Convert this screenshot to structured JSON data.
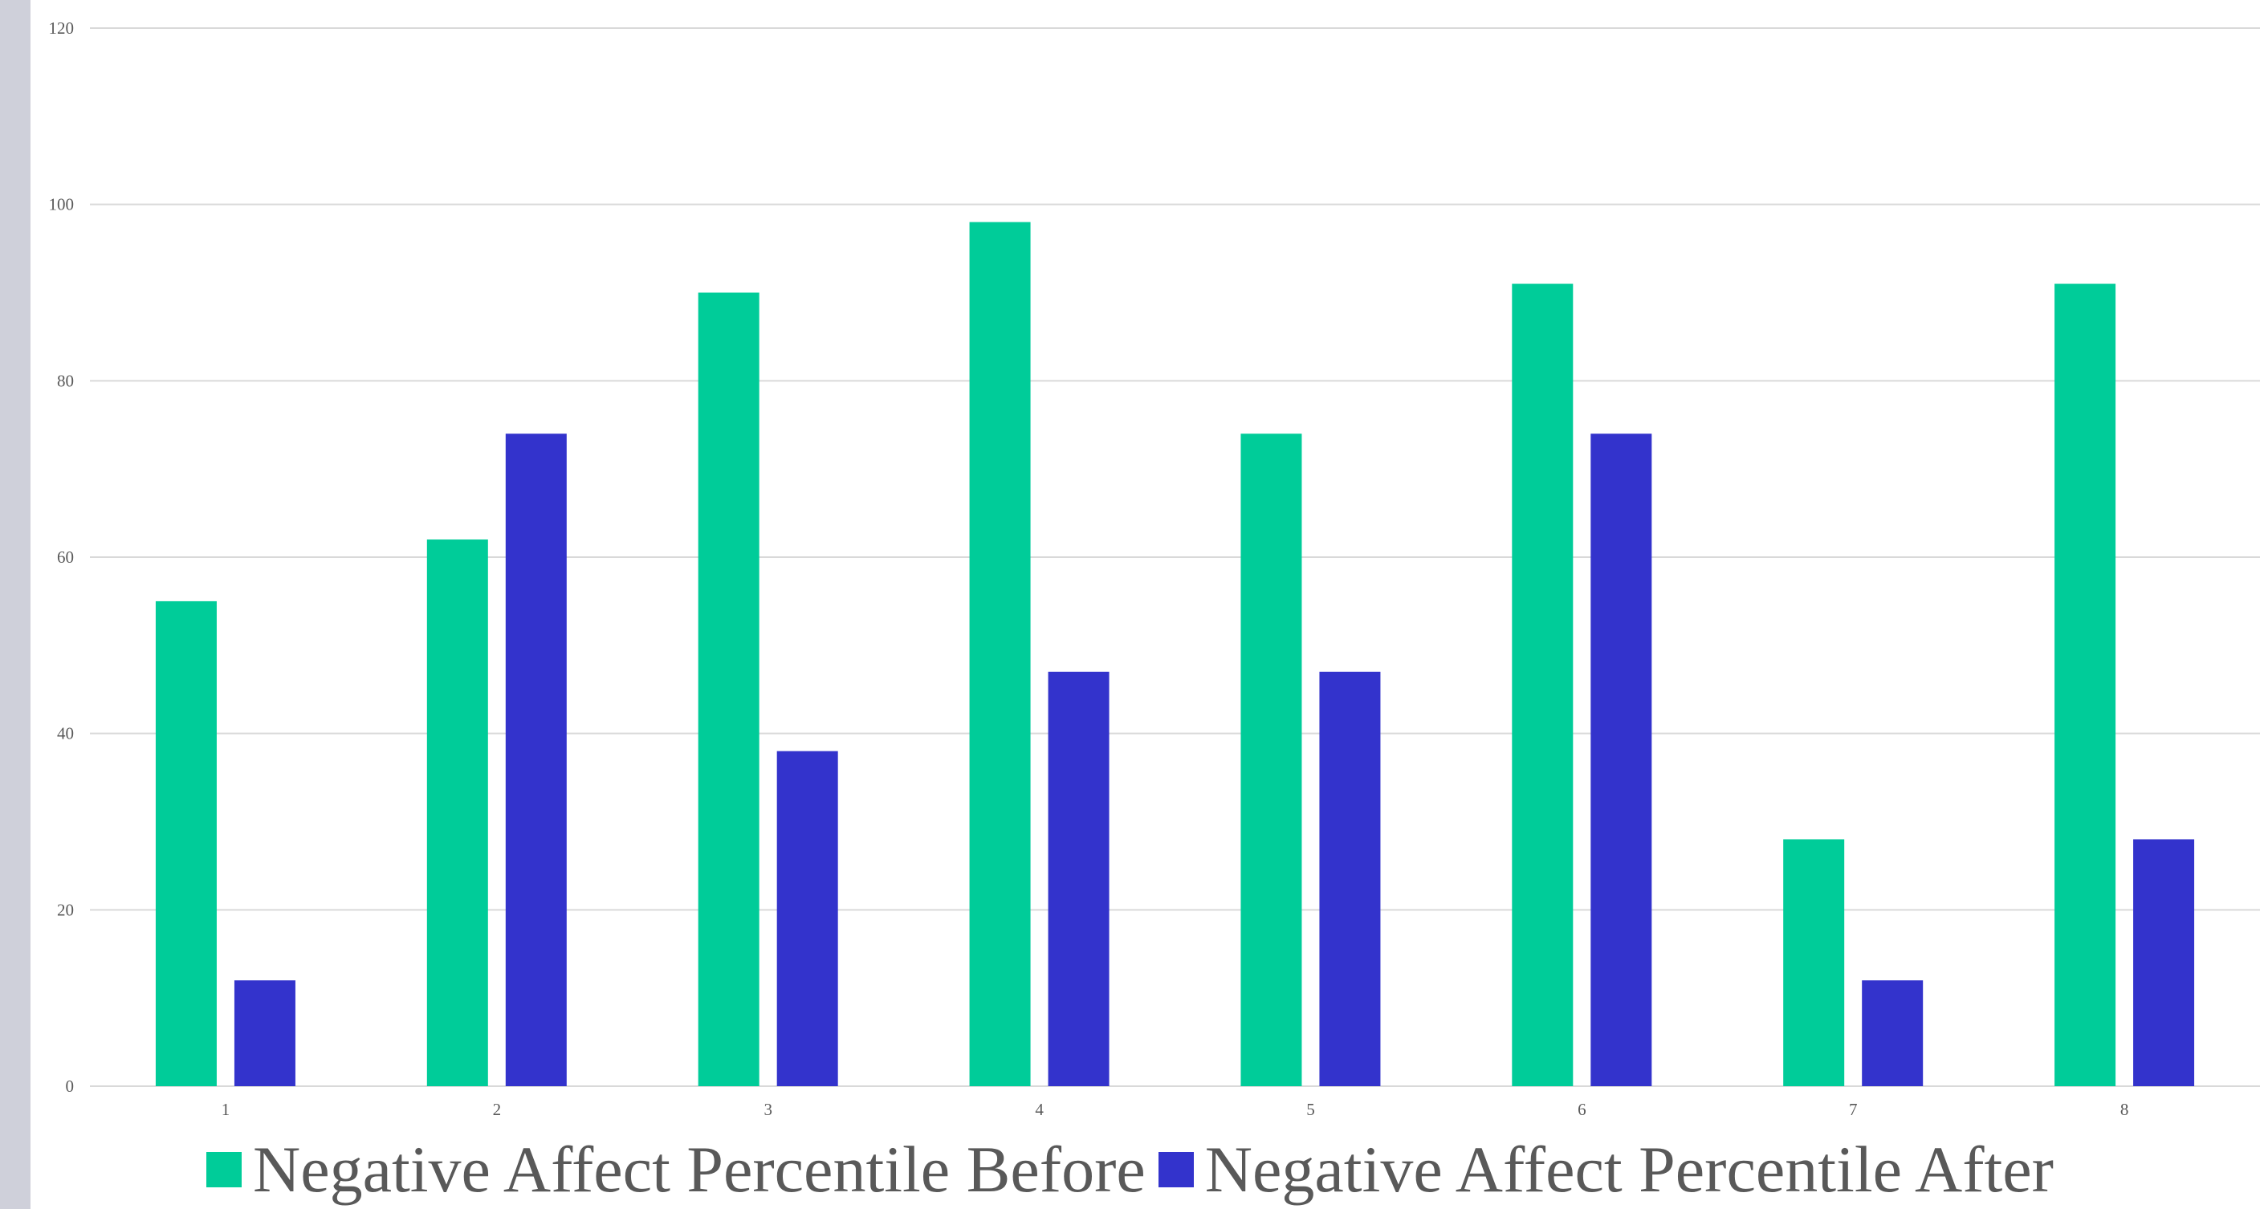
{
  "chart_data": {
    "type": "bar",
    "title": "",
    "xlabel": "",
    "ylabel": "",
    "categories": [
      "1",
      "2",
      "3",
      "4",
      "5",
      "6",
      "7",
      "8"
    ],
    "ylim": [
      0,
      120
    ],
    "yticks": [
      "0",
      "20",
      "40",
      "60",
      "80",
      "100",
      "120"
    ],
    "grid": true,
    "legend_position": "bottom",
    "series": [
      {
        "name": "Negative Affect Percentile Before",
        "color": "#00cc99",
        "values": [
          55,
          62,
          90,
          98,
          74,
          91,
          28,
          91
        ]
      },
      {
        "name": "Negative Affect Percentile After",
        "color": "#3333cc",
        "values": [
          12,
          74,
          38,
          47,
          47,
          74,
          12,
          28
        ]
      }
    ]
  }
}
